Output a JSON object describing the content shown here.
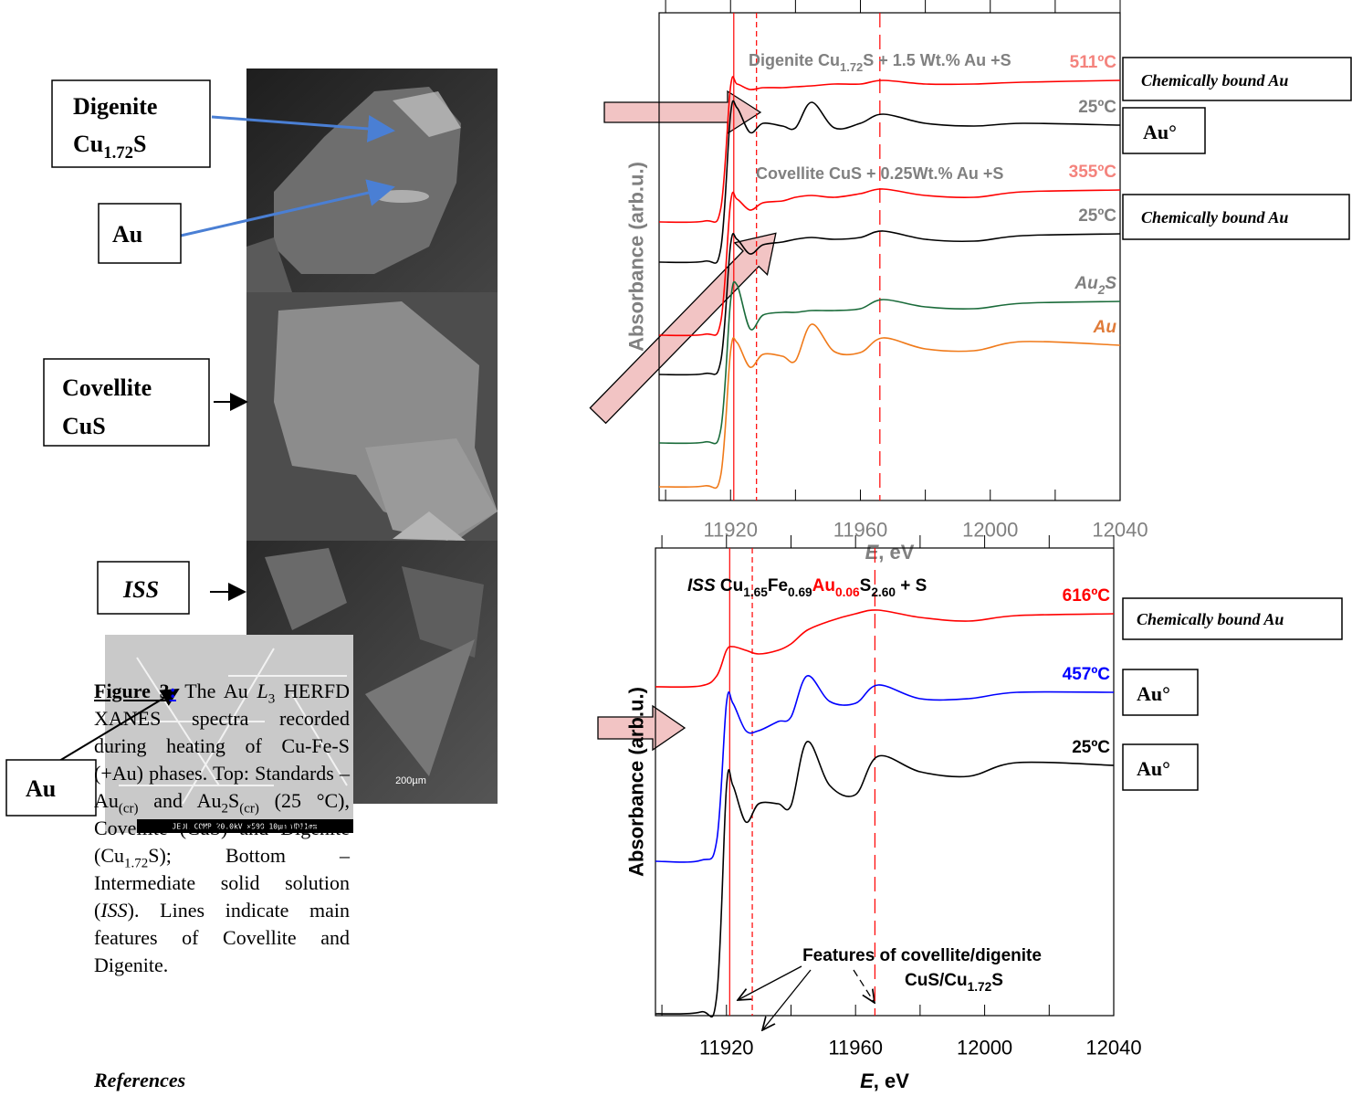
{
  "chart_data": [
    {
      "type": "line",
      "text_color": "#808080",
      "xlabel": [
        {
          "text": "E",
          "italic": true
        },
        {
          "text": ", eV"
        }
      ],
      "ylabel": "Absorbance (arb.u.)",
      "x": [
        11898,
        11912,
        11917,
        11920,
        11922,
        11926,
        11930,
        11936,
        11940,
        11945,
        11952,
        11960,
        11967,
        11980,
        11995,
        12010,
        12040
      ],
      "xlim": [
        11898,
        12040
      ],
      "xticks": [
        11920,
        11960,
        12000,
        12040
      ],
      "xminorticks": [
        11900,
        11940,
        11980,
        12020
      ],
      "ylim": [
        0,
        534
      ],
      "vline_color": "#ff0000",
      "vlines": [
        {
          "x": 11921,
          "dash": "solid"
        },
        {
          "x": 11928,
          "dash": "short"
        },
        {
          "x": 11966,
          "dash": "long"
        }
      ],
      "series": [
        {
          "name": [
            {
              "text": "511ºC"
            }
          ],
          "color": "#ff0000",
          "label_color": "#f4837d",
          "values": [
            305,
            306,
            320,
            453,
            456,
            450,
            452,
            452,
            453,
            454,
            456,
            456,
            460,
            456,
            456,
            458,
            460
          ]
        },
        {
          "name": [
            {
              "text": "25ºC"
            }
          ],
          "color": "#000000",
          "label_color": "#808080",
          "values": [
            261,
            262,
            276,
            423,
            430,
            403,
            413,
            410,
            408,
            436,
            408,
            413,
            423,
            413,
            410,
            413,
            411
          ]
        },
        {
          "name": [
            {
              "text": "355ºC"
            }
          ],
          "color": "#ff0000",
          "label_color": "#f4837d",
          "values": [
            181,
            182,
            196,
            326,
            330,
            318,
            326,
            328,
            332,
            334,
            332,
            336,
            341,
            334,
            332,
            338,
            340
          ]
        },
        {
          "name": [
            {
              "text": "25ºC"
            }
          ],
          "color": "#000000",
          "label_color": "#808080",
          "values": [
            138,
            139,
            153,
            280,
            286,
            270,
            280,
            283,
            286,
            288,
            286,
            288,
            295,
            286,
            284,
            290,
            292
          ]
        },
        {
          "name": [
            {
              "text": "Au"
            },
            {
              "text": "2",
              "sub": true
            },
            {
              "text": "S"
            }
          ],
          "color": "#1a6b3a",
          "label_color": "#808080",
          "label_italic": true,
          "values": [
            63,
            64,
            78,
            218,
            236,
            188,
            203,
            206,
            206,
            208,
            208,
            210,
            220,
            212,
            210,
            216,
            218
          ]
        },
        {
          "name": [
            {
              "text": "Au"
            }
          ],
          "color": "#f07a1a",
          "label_color": "#e07b39",
          "label_italic": true,
          "values": [
            15,
            16,
            28,
            163,
            173,
            146,
            160,
            158,
            153,
            193,
            163,
            162,
            178,
            166,
            164,
            174,
            170
          ]
        }
      ],
      "annotations": [
        [
          {
            "text": "Digenite Cu"
          },
          {
            "text": "1.72",
            "sub": true
          },
          {
            "text": "S + 1.5 Wt.% Au +S"
          }
        ],
        [
          {
            "text": "Covellite CuS + 0.25Wt.% Au +S"
          }
        ]
      ]
    },
    {
      "type": "line",
      "text_color": "#000000",
      "xlabel": [
        {
          "text": "E",
          "italic": true
        },
        {
          "text": ", eV"
        }
      ],
      "ylabel": "Absorbance (arb.u.)",
      "x": [
        11898,
        11912,
        11917,
        11920,
        11922,
        11926,
        11930,
        11936,
        11940,
        11945,
        11952,
        11960,
        11967,
        11980,
        11995,
        12010,
        12040
      ],
      "xlim": [
        11898,
        12040
      ],
      "xticks": [
        11920,
        11960,
        12000,
        12040
      ],
      "xminorticks": [
        11900,
        11940,
        11980,
        12020
      ],
      "ylim": [
        0,
        512
      ],
      "vline_color": "#ff0000",
      "vlines": [
        {
          "x": 11921,
          "dash": "solid"
        },
        {
          "x": 11928,
          "dash": "short"
        },
        {
          "x": 11966,
          "dash": "long"
        }
      ],
      "series": [
        {
          "name": [
            {
              "text": "616ºC"
            }
          ],
          "color": "#ff0000",
          "label_color": "#ff0000",
          "values": [
            360,
            361,
            372,
            400,
            404,
            400,
            396,
            400,
            407,
            422,
            432,
            440,
            444,
            436,
            432,
            438,
            440
          ]
        },
        {
          "name": [
            {
              "text": "457ºC"
            }
          ],
          "color": "#0000ff",
          "label_color": "#0000ff",
          "values": [
            169,
            170,
            192,
            342,
            342,
            312,
            312,
            322,
            327,
            372,
            344,
            342,
            362,
            347,
            347,
            354,
            354
          ]
        },
        {
          "name": [
            {
              "text": "25ºC"
            }
          ],
          "color": "#000000",
          "label_color": "#000000",
          "values": [
            2,
            4,
            22,
            250,
            252,
            212,
            232,
            232,
            230,
            300,
            252,
            242,
            284,
            267,
            262,
            277,
            274
          ]
        }
      ],
      "annotations": [
        [
          {
            "text": "ISS",
            "italic": true
          },
          {
            "text": " Cu"
          },
          {
            "text": "1.65",
            "sub": true
          },
          {
            "text": "Fe"
          },
          {
            "text": "0.69",
            "sub": true
          },
          {
            "text": "Au",
            "color": "#ff0000"
          },
          {
            "text": "0.06",
            "sub": true,
            "color": "#ff0000"
          },
          {
            "text": "S"
          },
          {
            "text": "2.60",
            "sub": true
          },
          {
            "text": " + S"
          }
        ],
        [
          {
            "text": "Features of covellite/digenite"
          }
        ],
        [
          {
            "text": "CuS/Cu"
          },
          {
            "text": "1.72",
            "sub": true
          },
          {
            "text": "S"
          }
        ]
      ]
    }
  ],
  "callouts": [
    {
      "lines": [
        [
          {
            "text": "Digenite"
          }
        ],
        [
          {
            "text": "Cu"
          },
          {
            "text": "1.72",
            "sub": true
          },
          {
            "text": "S"
          }
        ]
      ]
    },
    {
      "lines": [
        [
          {
            "text": "Au"
          }
        ]
      ]
    },
    {
      "lines": [
        [
          {
            "text": "Covellite"
          }
        ],
        [
          {
            "text": "CuS"
          }
        ]
      ]
    },
    {
      "lines": [
        [
          {
            "text": "ISS",
            "italic": true
          }
        ]
      ]
    },
    {
      "lines": [
        [
          {
            "text": "Au"
          }
        ]
      ]
    },
    {
      "lines": [
        [
          {
            "text": "Chemically bound Au",
            "italic": true
          }
        ]
      ]
    },
    {
      "lines": [
        [
          {
            "text": "Au°"
          }
        ]
      ]
    },
    {
      "lines": [
        [
          {
            "text": "Chemically bound Au",
            "italic": true
          }
        ]
      ]
    },
    {
      "lines": [
        [
          {
            "text": "Chemically bound Au",
            "italic": true
          }
        ]
      ]
    },
    {
      "lines": [
        [
          {
            "text": "Au°"
          }
        ]
      ]
    },
    {
      "lines": [
        [
          {
            "text": "Au°"
          }
        ]
      ]
    }
  ],
  "micrographs": {
    "scale_bar": "200µm",
    "info_bar": "JEOL COMP 20.0kV ×500 10µm WD11mm"
  },
  "caption": [
    {
      "text": "Figure 3",
      "bold": true,
      "underline": true
    },
    {
      "text": ":",
      "bold": true,
      "underline": true,
      "color": "#0000ff"
    },
    {
      "text": " The Au "
    },
    {
      "text": "L",
      "italic": true
    },
    {
      "text": "3",
      "sub": true
    },
    {
      "text": " HERFD XANES spectra recorded during heating of Cu-Fe-S (+Au) phases. Top: Standards – Au"
    },
    {
      "text": "(cr)",
      "sub": true
    },
    {
      "text": " and Au"
    },
    {
      "text": "2",
      "sub": true
    },
    {
      "text": "S"
    },
    {
      "text": "(cr)",
      "sub": true
    },
    {
      "text": " (25 °C), Covellite (CuS) and Digenite (Cu"
    },
    {
      "text": "1.72",
      "sub": true
    },
    {
      "text": "S); Bottom – Intermediate solid solution ("
    },
    {
      "text": "ISS",
      "italic": true
    },
    {
      "text": "). Lines indicate main features of Covellite and Digenite."
    }
  ],
  "references": "References"
}
